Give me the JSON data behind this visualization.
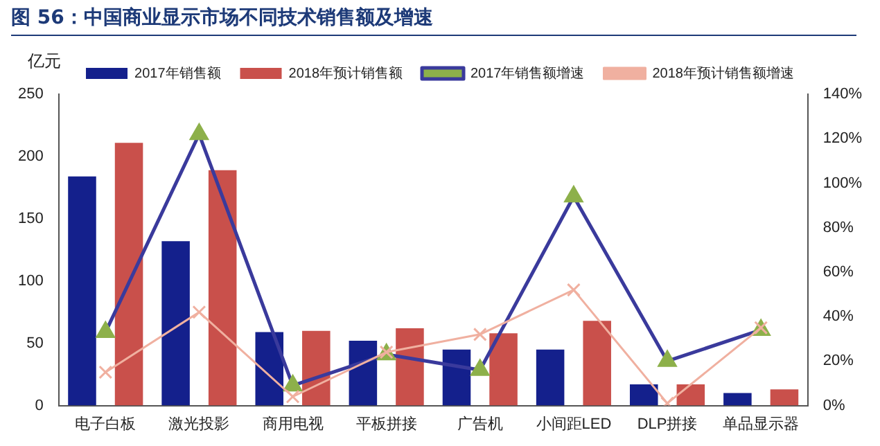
{
  "chart_data": {
    "type": "bar",
    "title": "图 56：中国商业显示市场不同技术销售额及增速",
    "ylabel": "亿元",
    "categories": [
      "电子白板",
      "激光投影",
      "商用电视",
      "平板拼接",
      "广告机",
      "小间距LED",
      "DLP拼接",
      "单品显示器"
    ],
    "series": [
      {
        "name": "2017年销售额",
        "color": "#14208c",
        "values": [
          184,
          132,
          59,
          52,
          45,
          45,
          17,
          10
        ]
      },
      {
        "name": "2018年预计销售额",
        "color": "#c9504b",
        "values": [
          211,
          189,
          60,
          62,
          58,
          68,
          17,
          13
        ]
      },
      {
        "name": "2017年销售额增速",
        "type": "line",
        "axis": "y2",
        "color": "#3a3a9c",
        "marker": "triangle",
        "values": [
          33,
          122,
          9,
          23,
          16,
          94,
          20,
          34
        ]
      },
      {
        "name": "2018年预计销售额增速",
        "type": "line",
        "axis": "y2",
        "color": "#f0b0a0",
        "marker": "cross",
        "values": [
          15,
          42,
          4,
          24,
          32,
          52,
          1,
          35
        ]
      }
    ],
    "ylim": [
      0,
      250
    ],
    "yticks": [
      0,
      50,
      100,
      150,
      200,
      250
    ],
    "y2lim": [
      0,
      140
    ],
    "y2ticks": [
      {
        "value": 0,
        "label": "0%"
      },
      {
        "value": 20,
        "label": "20%"
      },
      {
        "value": 40,
        "label": "40%"
      },
      {
        "value": 60,
        "label": "60%"
      },
      {
        "value": 80,
        "label": "80%"
      },
      {
        "value": 100,
        "label": "100%"
      },
      {
        "value": 120,
        "label": "120%"
      },
      {
        "value": 140,
        "label": "140%"
      }
    ],
    "grid": false,
    "legend": "top"
  }
}
